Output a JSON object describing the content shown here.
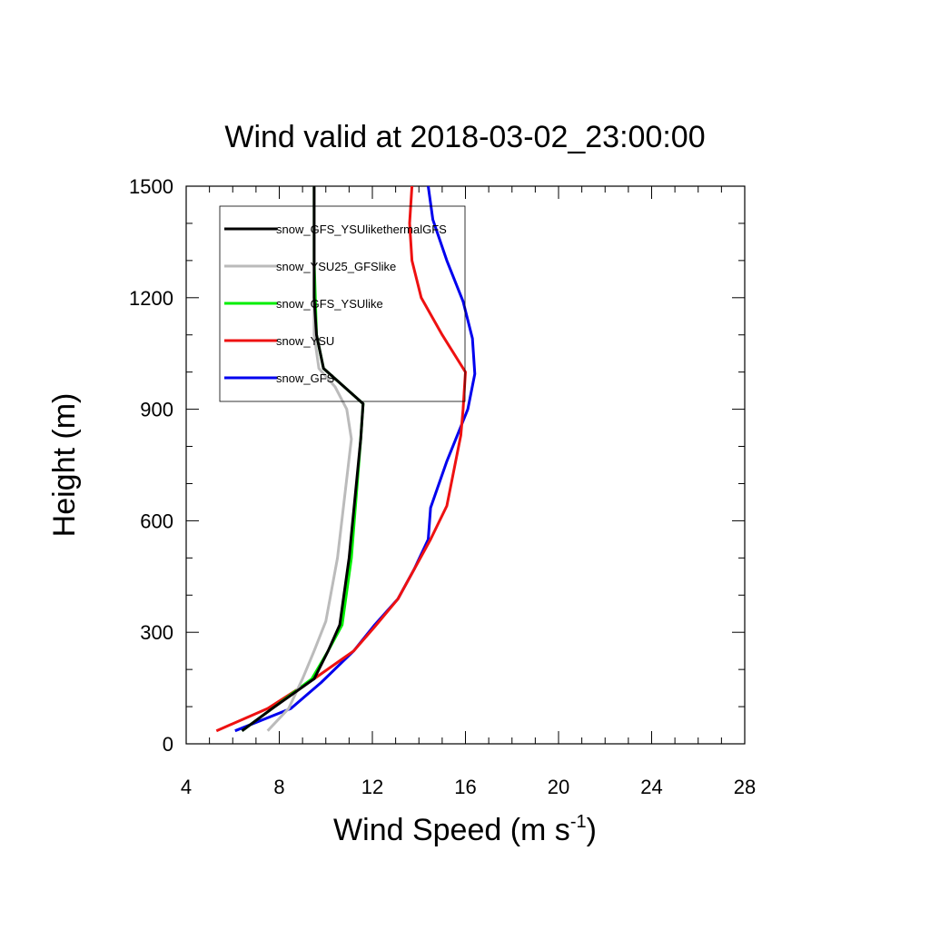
{
  "chart_data": {
    "type": "line",
    "title": "Wind valid at 2018-03-02_23:00:00",
    "xlabel": "Wind Speed (m s",
    "xlabel_sup": "-1",
    "xlabel_close": ")",
    "ylabel": "Height (m)",
    "xlim": [
      4,
      28
    ],
    "ylim": [
      0,
      1500
    ],
    "xticks": [
      4,
      8,
      12,
      16,
      20,
      24,
      28
    ],
    "yticks": [
      0,
      300,
      600,
      900,
      1200,
      1500
    ],
    "grid": false,
    "legend_position": "top-left",
    "series": [
      {
        "name": "snow_GFS_YSUlikethermalGFS",
        "color": "#000000",
        "x": [
          6.4,
          7.7,
          9.5,
          10.1,
          10.6,
          11.0,
          11.5,
          11.6,
          11.6,
          9.9,
          9.6,
          9.5,
          9.5,
          9.5
        ],
        "y": [
          35,
          95,
          175,
          250,
          320,
          500,
          820,
          915,
          915,
          1010,
          1100,
          1200,
          1300,
          1500
        ]
      },
      {
        "name": "snow_YSU25_GFSlike",
        "color": "#bbbbbb",
        "x": [
          7.5,
          8.4,
          9.0,
          9.5,
          10.0,
          10.5,
          11.1,
          10.9,
          10.4,
          9.7,
          9.5,
          9.5,
          9.5
        ],
        "y": [
          35,
          95,
          175,
          250,
          330,
          500,
          820,
          900,
          960,
          1010,
          1100,
          1300,
          1500
        ]
      },
      {
        "name": "snow_GFS_YSUlike",
        "color": "#00ee00",
        "x": [
          6.4,
          7.7,
          9.4,
          10.1,
          10.7,
          11.1,
          11.5,
          11.6,
          11.6,
          9.9,
          9.6,
          9.5,
          9.5
        ],
        "y": [
          35,
          95,
          175,
          250,
          320,
          500,
          820,
          915,
          915,
          1010,
          1100,
          1300,
          1500
        ]
      },
      {
        "name": "snow_YSU",
        "color": "#ee1111",
        "x": [
          5.3,
          7.5,
          9.5,
          11.2,
          12.1,
          13.1,
          14.5,
          15.2,
          15.8,
          15.9,
          16.0,
          15.0,
          14.1,
          13.7,
          13.6,
          13.7
        ],
        "y": [
          35,
          95,
          175,
          250,
          315,
          390,
          550,
          640,
          830,
          900,
          1000,
          1100,
          1200,
          1300,
          1400,
          1500
        ]
      },
      {
        "name": "snow_GFS",
        "color": "#0000ee",
        "x": [
          6.1,
          8.5,
          9.8,
          11.2,
          12.1,
          13.1,
          13.8,
          14.4,
          14.5,
          15.2,
          16.1,
          16.4,
          16.3,
          15.9,
          15.2,
          14.6,
          14.4
        ],
        "y": [
          35,
          95,
          165,
          250,
          320,
          390,
          470,
          550,
          635,
          760,
          900,
          995,
          1090,
          1190,
          1300,
          1410,
          1500
        ]
      }
    ]
  }
}
